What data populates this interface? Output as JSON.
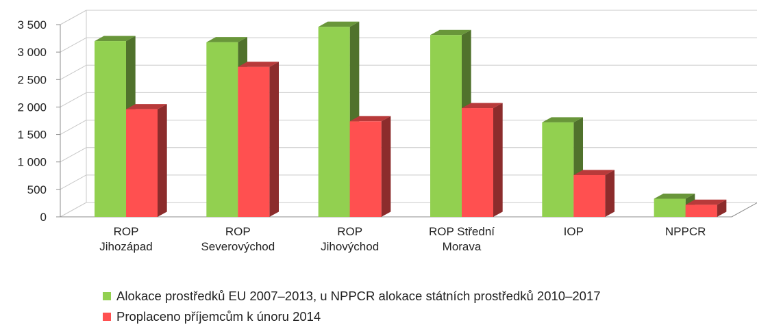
{
  "chart_data": {
    "type": "bar",
    "categories": [
      [
        "ROP",
        "Jihozápad"
      ],
      [
        "ROP",
        "Severovýchod"
      ],
      [
        "ROP",
        "Jihovýchod"
      ],
      [
        "ROP Střední",
        "Morava"
      ],
      [
        "IOP"
      ],
      [
        "NPPCR"
      ]
    ],
    "series": [
      {
        "name": "Alokace prostředků EU 2007–2013, u NPPCR alokace státních prostředků 2010–2017",
        "values": [
          3200,
          3180,
          3460,
          3310,
          1720,
          330
        ],
        "color": "#92d050"
      },
      {
        "name": "Proplaceno příjemcům k únoru 2014",
        "values": [
          1960,
          2730,
          1740,
          1980,
          760,
          220
        ],
        "color": "#ff5050"
      }
    ],
    "yticks": [
      "3 500",
      "3 000",
      "2 500",
      "2 000",
      "1 500",
      "1 000",
      "500",
      "0"
    ],
    "ylim": [
      0,
      3500
    ],
    "grid": true,
    "legend_position": "bottom-left"
  }
}
